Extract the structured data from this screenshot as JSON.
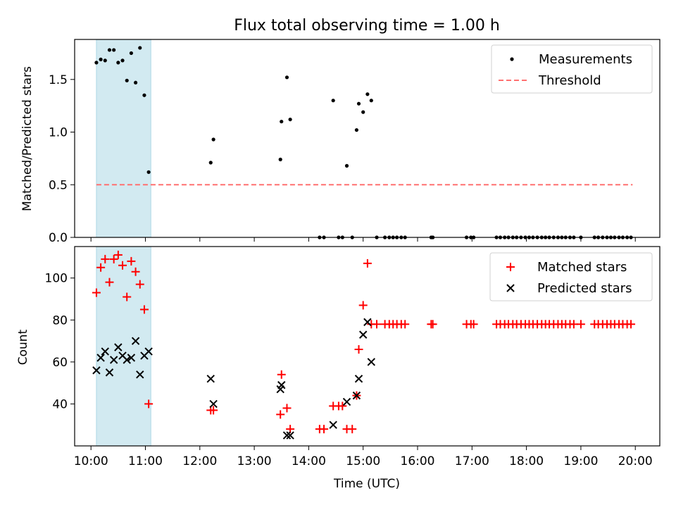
{
  "chart_data": {
    "title": "Flux total observing time = 1.00 h",
    "xlabel": "Time (UTC)",
    "x_unit": "decimal hours (UTC)",
    "xlim": [
      9.7,
      20.45
    ],
    "x_ticks": [
      10,
      11,
      12,
      13,
      14,
      15,
      16,
      17,
      18,
      19,
      20
    ],
    "x_tick_labels": [
      "10:00",
      "11:00",
      "12:00",
      "13:00",
      "14:00",
      "15:00",
      "16:00",
      "17:00",
      "18:00",
      "19:00",
      "20:00"
    ],
    "highlight_span": [
      10.1,
      11.1
    ],
    "highlight_color": "#add8e6",
    "panels": [
      {
        "type": "scatter",
        "ylabel": "Matched/Predicted stars",
        "ylim": [
          0,
          1.88
        ],
        "y_ticks": [
          0.0,
          0.5,
          1.0,
          1.5
        ],
        "y_tick_labels": [
          "0.0",
          "0.5",
          "1.0",
          "1.5"
        ],
        "legend": {
          "position": "top-right",
          "entries": [
            "Measurements",
            "Threshold"
          ]
        },
        "threshold": {
          "name": "Threshold",
          "value": 0.5,
          "x_range": [
            10.1,
            19.95
          ],
          "color": "#ff7070"
        },
        "series": [
          {
            "name": "Measurements",
            "marker": "dot",
            "color": "#000000",
            "x": [
              10.1,
              10.18,
              10.26,
              10.34,
              10.42,
              10.5,
              10.58,
              10.66,
              10.74,
              10.82,
              10.9,
              10.98,
              11.06,
              12.2,
              12.25,
              13.48,
              13.5,
              13.6,
              13.66,
              14.2,
              14.28,
              14.45,
              14.55,
              14.62,
              14.7,
              14.8,
              14.88,
              14.92,
              15.0,
              15.08,
              15.15,
              15.25,
              15.4,
              15.48,
              15.55,
              15.62,
              15.7,
              15.77,
              16.25,
              16.28,
              16.9,
              16.98,
              17.03,
              17.45,
              17.52,
              17.6,
              17.67,
              17.75,
              17.82,
              17.9,
              17.98,
              18.05,
              18.12,
              18.2,
              18.28,
              18.35,
              18.42,
              18.5,
              18.58,
              18.65,
              18.72,
              18.8,
              18.87,
              19.0,
              19.25,
              19.32,
              19.4,
              19.48,
              19.55,
              19.62,
              19.7,
              19.77,
              19.85,
              19.92
            ],
            "y": [
              1.66,
              1.69,
              1.68,
              1.78,
              1.78,
              1.66,
              1.68,
              1.49,
              1.75,
              1.47,
              1.8,
              1.35,
              0.62,
              0.71,
              0.93,
              0.74,
              1.1,
              1.52,
              1.12,
              0,
              0,
              1.3,
              0,
              0,
              0.68,
              0,
              1.02,
              1.27,
              1.19,
              1.36,
              1.3,
              0,
              0,
              0,
              0,
              0,
              0,
              0,
              0,
              0,
              0,
              0,
              0,
              0,
              0,
              0,
              0,
              0,
              0,
              0,
              0,
              0,
              0,
              0,
              0,
              0,
              0,
              0,
              0,
              0,
              0,
              0,
              0,
              0,
              0,
              0,
              0,
              0,
              0,
              0,
              0,
              0,
              0,
              0
            ]
          }
        ]
      },
      {
        "type": "scatter",
        "ylabel": "Count",
        "ylim": [
          20,
          115
        ],
        "y_ticks": [
          40,
          60,
          80,
          100
        ],
        "y_tick_labels": [
          "40",
          "60",
          "80",
          "100"
        ],
        "legend": {
          "position": "top-right",
          "entries": [
            "Matched stars",
            "Predicted stars"
          ]
        },
        "series": [
          {
            "name": "Matched stars",
            "marker": "plus",
            "color": "#ff0000",
            "x": [
              10.1,
              10.18,
              10.26,
              10.34,
              10.42,
              10.5,
              10.58,
              10.66,
              10.74,
              10.82,
              10.9,
              10.98,
              11.06,
              12.2,
              12.25,
              13.48,
              13.5,
              13.6,
              13.66,
              14.2,
              14.28,
              14.45,
              14.55,
              14.62,
              14.7,
              14.8,
              14.88,
              14.92,
              15.0,
              15.08,
              15.15,
              15.25,
              15.4,
              15.48,
              15.55,
              15.62,
              15.7,
              15.77,
              16.25,
              16.28,
              16.9,
              16.98,
              17.03,
              17.45,
              17.52,
              17.6,
              17.67,
              17.75,
              17.82,
              17.9,
              17.98,
              18.05,
              18.12,
              18.2,
              18.28,
              18.35,
              18.42,
              18.5,
              18.58,
              18.65,
              18.72,
              18.8,
              18.87,
              19.0,
              19.25,
              19.32,
              19.4,
              19.48,
              19.55,
              19.62,
              19.7,
              19.77,
              19.85,
              19.92
            ],
            "y": [
              93,
              105,
              109,
              98,
              109,
              111,
              106,
              91,
              108,
              103,
              97,
              85,
              40,
              37,
              37,
              35,
              54,
              38,
              28,
              28,
              28,
              39,
              39,
              39,
              28,
              28,
              44,
              66,
              87,
              107,
              78,
              78,
              78,
              78,
              78,
              78,
              78,
              78,
              78,
              78,
              78,
              78,
              78,
              78,
              78,
              78,
              78,
              78,
              78,
              78,
              78,
              78,
              78,
              78,
              78,
              78,
              78,
              78,
              78,
              78,
              78,
              78,
              78,
              78,
              78,
              78,
              78,
              78,
              78,
              78,
              78,
              78,
              78,
              78
            ]
          },
          {
            "name": "Predicted stars",
            "marker": "x",
            "color": "#000000",
            "x": [
              10.1,
              10.18,
              10.26,
              10.34,
              10.42,
              10.5,
              10.58,
              10.66,
              10.74,
              10.82,
              10.9,
              10.98,
              11.06,
              12.2,
              12.25,
              13.48,
              13.5,
              13.6,
              13.66,
              14.45,
              14.7,
              14.88,
              14.92,
              15.0,
              15.08,
              15.15
            ],
            "y": [
              56,
              62,
              65,
              55,
              61,
              67,
              63,
              61,
              62,
              70,
              54,
              63,
              65,
              52,
              40,
              47,
              49,
              25,
              25,
              30,
              41,
              44,
              52,
              73,
              79,
              60
            ]
          }
        ]
      }
    ]
  }
}
